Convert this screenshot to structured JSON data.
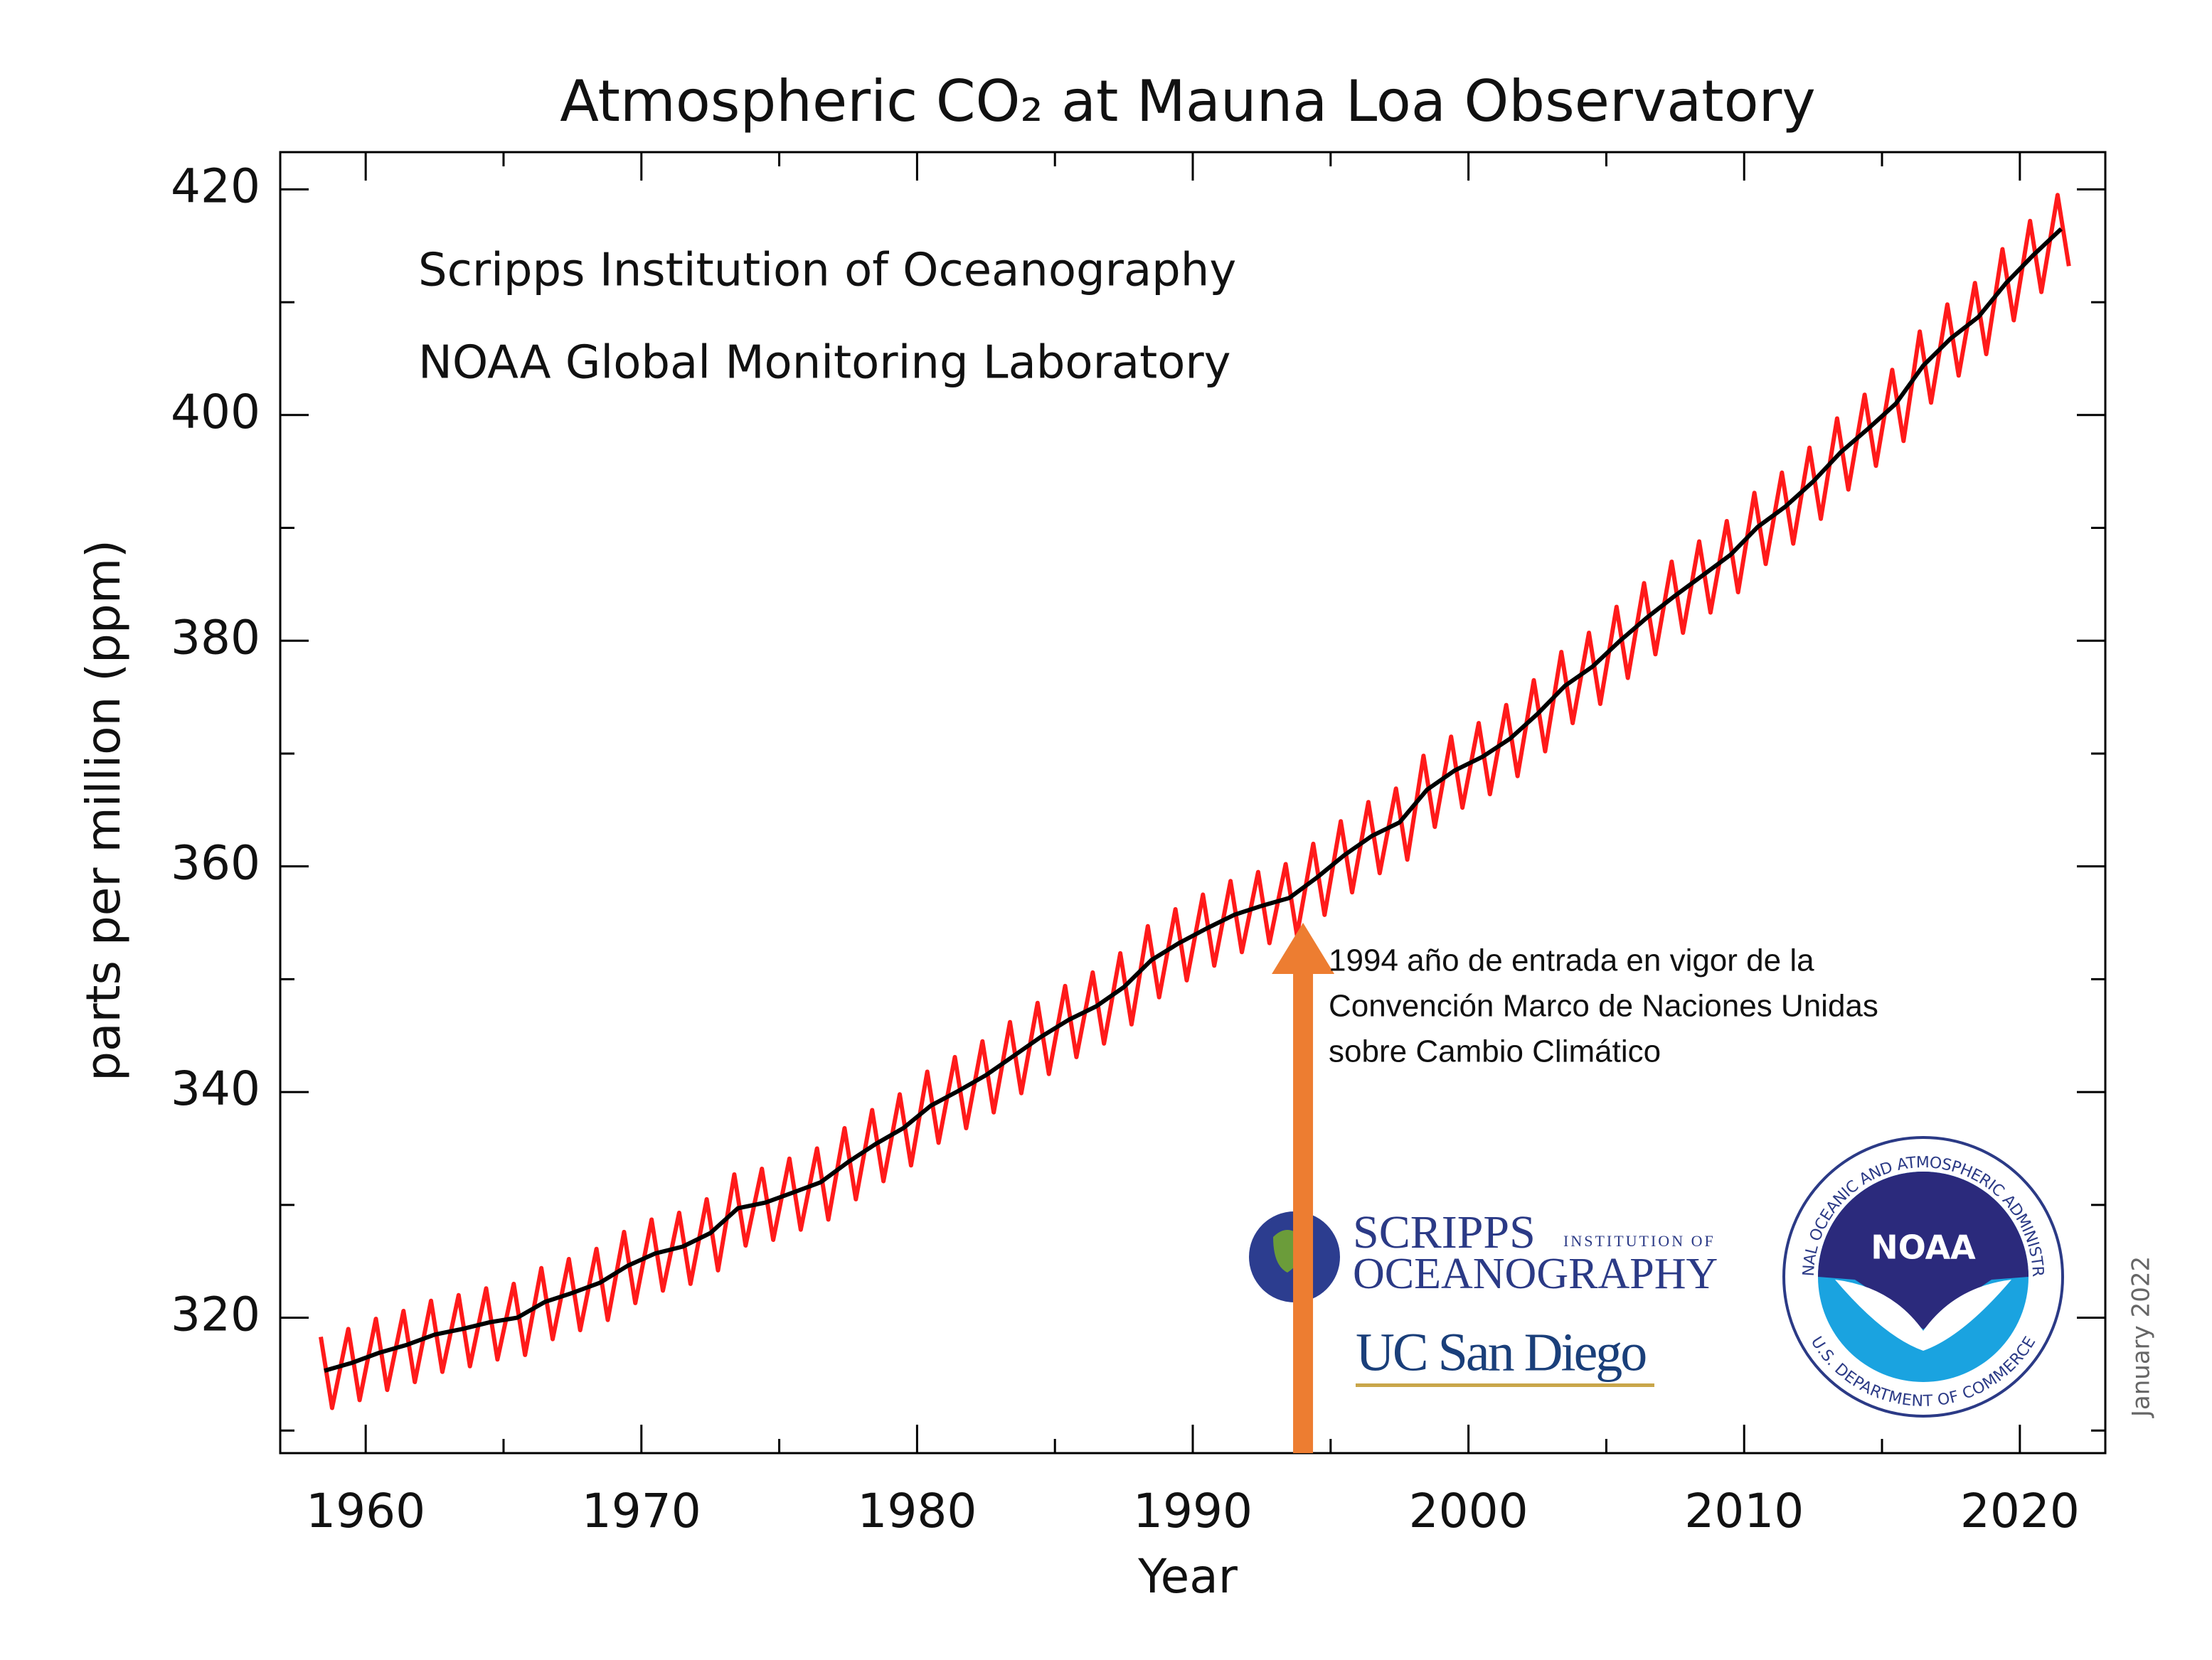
{
  "chart_data": {
    "type": "line",
    "title": "Atmospheric CO₂ at Mauna Loa Observatory",
    "x_label": "Year",
    "y_label": "parts per million (ppm)",
    "annotations": [
      "Scripps Institution of Oceanography",
      "NOAA Global Monitoring Laboratory"
    ],
    "date_note": "January 2022",
    "xlim": [
      1956.9,
      2023.1
    ],
    "xticks": [
      1960,
      1970,
      1980,
      1990,
      2000,
      2010,
      2020
    ],
    "xminor": [
      1965,
      1975,
      1985,
      1995,
      2005,
      2015
    ],
    "ylim": [
      308,
      423.3
    ],
    "yticks": [
      320,
      340,
      360,
      380,
      400,
      420
    ],
    "yminor": [
      310,
      330,
      350,
      370,
      390,
      410
    ],
    "series": [
      {
        "color": "#ff1a1a",
        "x": [
          1958.37,
          1958.78,
          1959.37,
          1959.78,
          1960.37,
          1960.78,
          1961.37,
          1961.78,
          1962.37,
          1962.78,
          1963.37,
          1963.78,
          1964.37,
          1964.78,
          1965.37,
          1965.78,
          1966.37,
          1966.78,
          1967.37,
          1967.78,
          1968.37,
          1968.78,
          1969.37,
          1969.78,
          1970.37,
          1970.78,
          1971.37,
          1971.78,
          1972.37,
          1972.78,
          1973.37,
          1973.78,
          1974.37,
          1974.78,
          1975.37,
          1975.78,
          1976.37,
          1976.78,
          1977.37,
          1977.78,
          1978.37,
          1978.78,
          1979.37,
          1979.78,
          1980.37,
          1980.78,
          1981.37,
          1981.78,
          1982.37,
          1982.78,
          1983.37,
          1983.78,
          1984.37,
          1984.78,
          1985.37,
          1985.78,
          1986.37,
          1986.78,
          1987.37,
          1987.78,
          1988.37,
          1988.78,
          1989.37,
          1989.78,
          1990.37,
          1990.78,
          1991.37,
          1991.78,
          1992.37,
          1992.78,
          1993.37,
          1993.78,
          1994.37,
          1994.78,
          1995.37,
          1995.78,
          1996.37,
          1996.78,
          1997.37,
          1997.78,
          1998.37,
          1998.78,
          1999.37,
          1999.78,
          2000.37,
          2000.78,
          2001.37,
          2001.78,
          2002.37,
          2002.78,
          2003.37,
          2003.78,
          2004.37,
          2004.78,
          2005.37,
          2005.78,
          2006.37,
          2006.78,
          2007.37,
          2007.78,
          2008.37,
          2008.78,
          2009.37,
          2009.78,
          2010.37,
          2010.78,
          2011.37,
          2011.78,
          2012.37,
          2012.78,
          2013.37,
          2013.78,
          2014.37,
          2014.78,
          2015.37,
          2015.78,
          2016.37,
          2016.78,
          2017.37,
          2017.78,
          2018.37,
          2018.78,
          2019.37,
          2019.78,
          2020.37,
          2020.78,
          2021.37,
          2021.78
        ],
        "values": [
          318.3,
          312.0,
          319.0,
          312.7,
          319.9,
          313.6,
          320.6,
          314.3,
          321.5,
          315.2,
          322.0,
          315.7,
          322.6,
          316.3,
          323.0,
          316.7,
          324.4,
          318.1,
          325.2,
          318.9,
          326.1,
          319.8,
          327.6,
          321.3,
          328.7,
          322.4,
          329.3,
          323.0,
          330.5,
          324.2,
          332.7,
          326.4,
          333.2,
          326.9,
          334.1,
          327.8,
          335.0,
          328.7,
          336.8,
          330.5,
          338.4,
          332.1,
          339.8,
          333.5,
          341.8,
          335.5,
          343.1,
          336.8,
          344.5,
          338.2,
          346.2,
          339.9,
          347.9,
          341.6,
          349.4,
          343.1,
          350.6,
          344.3,
          352.3,
          346.0,
          354.7,
          348.4,
          356.2,
          349.9,
          357.5,
          351.2,
          358.7,
          352.4,
          359.5,
          353.2,
          360.2,
          353.9,
          362.0,
          355.7,
          364.0,
          357.7,
          365.7,
          359.4,
          366.9,
          360.6,
          369.8,
          363.5,
          371.5,
          365.2,
          372.7,
          366.4,
          374.3,
          368.0,
          376.5,
          370.2,
          379.0,
          372.7,
          380.7,
          374.4,
          383.0,
          376.7,
          385.1,
          378.8,
          387.0,
          380.7,
          388.8,
          382.5,
          390.6,
          384.3,
          393.1,
          386.8,
          394.9,
          388.6,
          397.1,
          390.8,
          399.7,
          393.4,
          401.8,
          395.5,
          404.0,
          397.7,
          407.4,
          401.1,
          409.8,
          403.5,
          411.7,
          405.4,
          414.7,
          408.4,
          417.2,
          410.9,
          419.5,
          413.2
        ]
      },
      {
        "color": "#000000",
        "x": [
          1958.5,
          1959.5,
          1960.5,
          1961.5,
          1962.5,
          1963.5,
          1964.5,
          1965.5,
          1966.5,
          1967.5,
          1968.5,
          1969.5,
          1970.5,
          1971.5,
          1972.5,
          1973.5,
          1974.5,
          1975.5,
          1976.5,
          1977.5,
          1978.5,
          1979.5,
          1980.5,
          1981.5,
          1982.5,
          1983.5,
          1984.5,
          1985.5,
          1986.5,
          1987.5,
          1988.5,
          1989.5,
          1990.5,
          1991.5,
          1992.5,
          1993.5,
          1994.5,
          1995.5,
          1996.5,
          1997.5,
          1998.5,
          1999.5,
          2000.5,
          2001.5,
          2002.5,
          2003.5,
          2004.5,
          2005.5,
          2006.5,
          2007.5,
          2008.5,
          2009.5,
          2010.5,
          2011.5,
          2012.5,
          2013.5,
          2014.5,
          2015.5,
          2016.5,
          2017.5,
          2018.5,
          2019.5,
          2020.5,
          2021.5
        ],
        "values": [
          315.3,
          316.0,
          316.9,
          317.6,
          318.5,
          319.0,
          319.6,
          320.0,
          321.4,
          322.2,
          323.1,
          324.6,
          325.7,
          326.3,
          327.5,
          329.7,
          330.2,
          331.1,
          332.0,
          333.8,
          335.4,
          336.8,
          338.8,
          340.1,
          341.5,
          343.2,
          344.9,
          346.4,
          347.6,
          349.3,
          351.7,
          353.2,
          354.5,
          355.7,
          356.5,
          357.2,
          359.0,
          361.0,
          362.7,
          363.9,
          366.8,
          368.5,
          369.7,
          371.3,
          373.5,
          376.0,
          377.7,
          380.0,
          382.1,
          384.0,
          385.8,
          387.6,
          390.1,
          391.9,
          394.1,
          396.7,
          398.8,
          401.0,
          404.4,
          406.8,
          408.7,
          411.7,
          414.2,
          416.5
        ]
      }
    ],
    "arrow": {
      "x": 1994,
      "y": 355,
      "color": "#ed7d31",
      "lines": [
        "1994 año de entrada en vigor de la",
        "Convención Marco de Naciones Unidas",
        "sobre Cambio Climático"
      ]
    },
    "logos": {
      "scripps": [
        "SCRIPPS",
        "INSTITUTION OF",
        "OCEANOGRAPHY"
      ],
      "ucsd": "UC San Diego",
      "noaa": "NOAA",
      "noaa_ring_top": "NATIONAL OCEANIC AND ATMOSPHERIC ADMINISTRATION",
      "noaa_ring_bottom": "U.S. DEPARTMENT OF COMMERCE"
    }
  }
}
